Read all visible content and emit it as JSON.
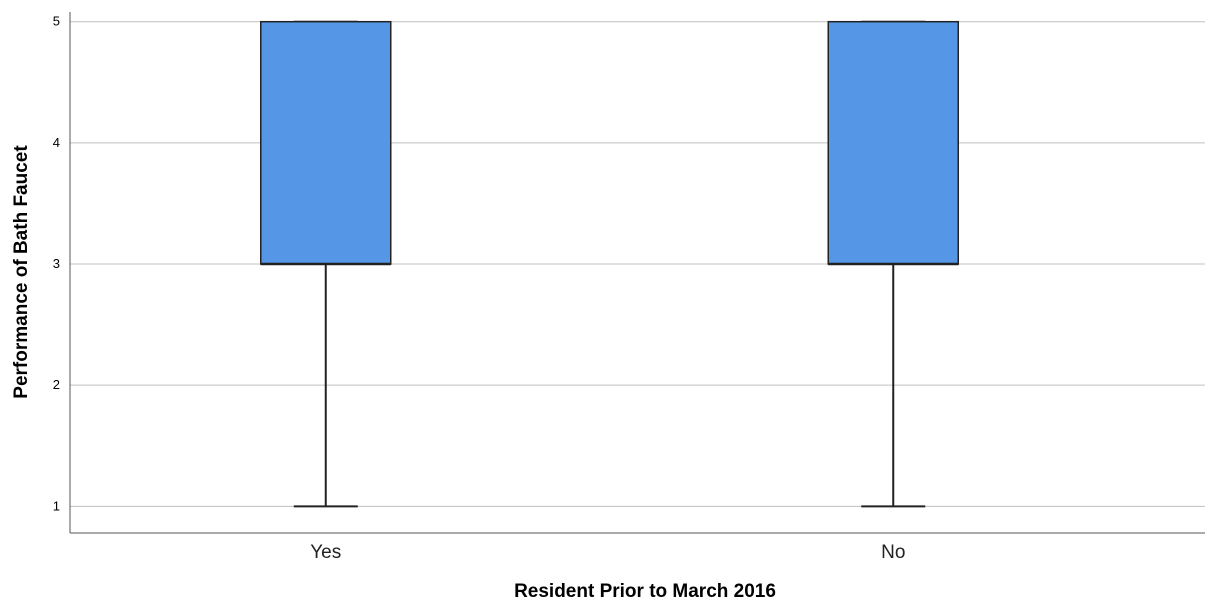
{
  "chart_data": {
    "type": "boxplot",
    "title": "",
    "xlabel": "Resident Prior to March 2016",
    "ylabel": "Performance of Bath Faucet",
    "categories": [
      "Yes",
      "No"
    ],
    "boxes": [
      {
        "category": "Yes",
        "min": 1,
        "q1": 3,
        "median": 3,
        "q3": 5,
        "max": 5
      },
      {
        "category": "No",
        "min": 1,
        "q1": 3,
        "median": 3,
        "q3": 5,
        "max": 5
      }
    ],
    "yticks": [
      "1",
      "2",
      "3",
      "4",
      "5"
    ],
    "ylim": [
      0.78,
      5.08
    ],
    "grid": true,
    "colors": {
      "box_fill": "#5596e6",
      "box_stroke": "#222222",
      "grid": "#c0c0c0",
      "axis": "#555555"
    }
  }
}
